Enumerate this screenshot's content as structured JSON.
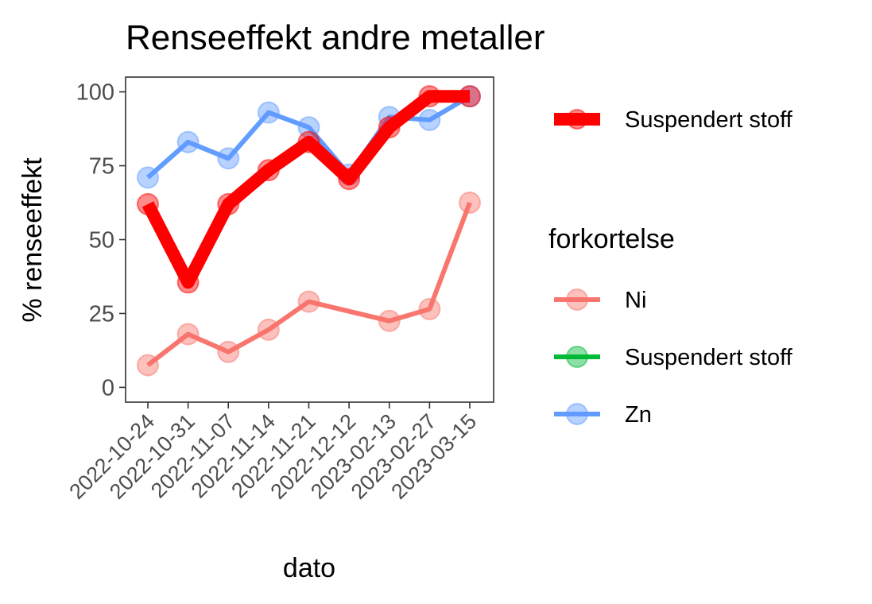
{
  "chart_data": {
    "type": "line",
    "title": "Renseeffekt andre metaller",
    "xlabel": "dato",
    "ylabel": "% renseeffekt",
    "categories": [
      "2022-10-24",
      "2022-10-31",
      "2022-11-07",
      "2022-11-14",
      "2022-11-21",
      "2022-12-12",
      "2023-02-13",
      "2023-02-27",
      "2023-03-15"
    ],
    "yticks": [
      0,
      25,
      50,
      75,
      100
    ],
    "ylim": [
      -5,
      105
    ],
    "grid": false,
    "series": [
      {
        "name": "Ni",
        "color": "#F8766D",
        "values": [
          7.5,
          18,
          12,
          19.5,
          29,
          null,
          22.5,
          26.5,
          62.5
        ]
      },
      {
        "name": "Zn",
        "color": "#619CFF",
        "values": [
          71,
          83,
          77.5,
          93,
          88,
          72,
          91.5,
          90.5,
          98.5
        ]
      },
      {
        "name": "Suspendert stoff",
        "color": "#FF0000",
        "values": [
          62,
          35.5,
          62,
          73.5,
          83,
          70.5,
          88,
          98.5,
          98.5
        ]
      }
    ],
    "legend": {
      "placement": "right",
      "top_entry": {
        "label": "Suspendert stoff",
        "color": "#FF0000"
      },
      "title": "forkortelse",
      "entries": [
        {
          "label": "Ni",
          "color": "#F8766D"
        },
        {
          "label": "Suspendert stoff",
          "color": "#00BA38"
        },
        {
          "label": "Zn",
          "color": "#619CFF"
        }
      ]
    }
  }
}
